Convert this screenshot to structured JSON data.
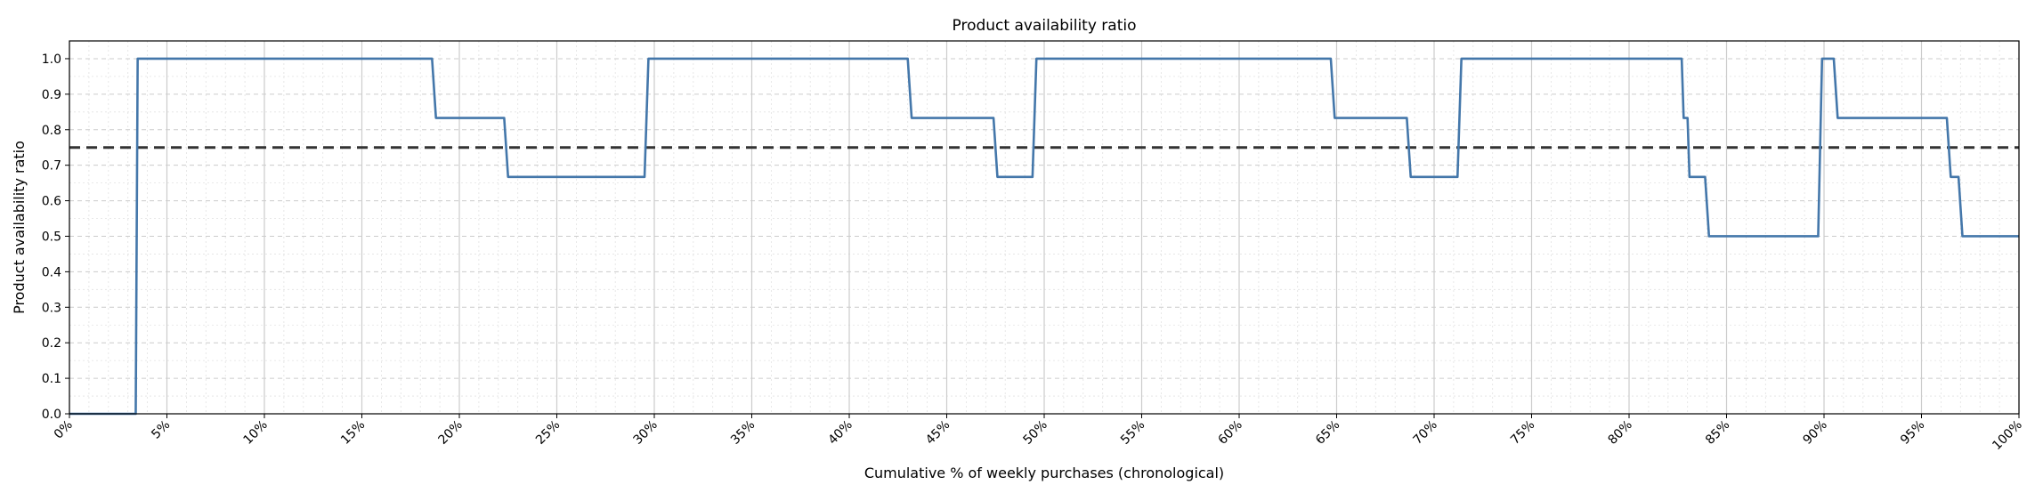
{
  "chart_data": {
    "type": "line",
    "title": "Product availability ratio",
    "xlabel": "Cumulative % of weekly purchases (chronological)",
    "ylabel": "Product availability ratio",
    "xlim": [
      0,
      100
    ],
    "ylim": [
      0,
      1.05
    ],
    "x_ticks": [
      0,
      5,
      10,
      15,
      20,
      25,
      30,
      35,
      40,
      45,
      50,
      55,
      60,
      65,
      70,
      75,
      80,
      85,
      90,
      95,
      100
    ],
    "x_tick_labels": [
      "0%",
      "5%",
      "10%",
      "15%",
      "20%",
      "25%",
      "30%",
      "35%",
      "40%",
      "45%",
      "50%",
      "55%",
      "60%",
      "65%",
      "70%",
      "75%",
      "80%",
      "85%",
      "90%",
      "95%",
      "100%"
    ],
    "y_ticks": [
      0.0,
      0.1,
      0.2,
      0.3,
      0.4,
      0.5,
      0.6,
      0.7,
      0.8,
      0.9,
      1.0
    ],
    "y_tick_labels": [
      "0.0",
      "0.1",
      "0.2",
      "0.3",
      "0.4",
      "0.5",
      "0.6",
      "0.7",
      "0.8",
      "0.9",
      "1.0"
    ],
    "grid": true,
    "series": [
      {
        "color": "#4477aa",
        "points": [
          [
            0,
            0
          ],
          [
            3.4,
            0
          ],
          [
            3.5,
            1.0
          ],
          [
            18.6,
            1.0
          ],
          [
            18.8,
            0.833
          ],
          [
            22.3,
            0.833
          ],
          [
            22.5,
            0.667
          ],
          [
            29.5,
            0.667
          ],
          [
            29.7,
            1.0
          ],
          [
            43.0,
            1.0
          ],
          [
            43.2,
            0.833
          ],
          [
            47.4,
            0.833
          ],
          [
            47.6,
            0.667
          ],
          [
            49.4,
            0.667
          ],
          [
            49.6,
            1.0
          ],
          [
            64.7,
            1.0
          ],
          [
            64.9,
            0.833
          ],
          [
            68.6,
            0.833
          ],
          [
            68.8,
            0.667
          ],
          [
            71.2,
            0.667
          ],
          [
            71.4,
            1.0
          ],
          [
            82.7,
            1.0
          ],
          [
            82.8,
            0.833
          ],
          [
            83.0,
            0.833
          ],
          [
            83.1,
            0.667
          ],
          [
            83.9,
            0.667
          ],
          [
            84.1,
            0.5
          ],
          [
            89.7,
            0.5
          ],
          [
            89.9,
            1.0
          ],
          [
            90.5,
            1.0
          ],
          [
            90.7,
            0.833
          ],
          [
            96.3,
            0.833
          ],
          [
            96.5,
            0.667
          ],
          [
            96.9,
            0.667
          ],
          [
            97.1,
            0.5
          ],
          [
            100,
            0.5
          ]
        ]
      }
    ],
    "reference_lines": [
      {
        "y": 0.75,
        "style": "dashed",
        "color": "#333333"
      }
    ]
  }
}
